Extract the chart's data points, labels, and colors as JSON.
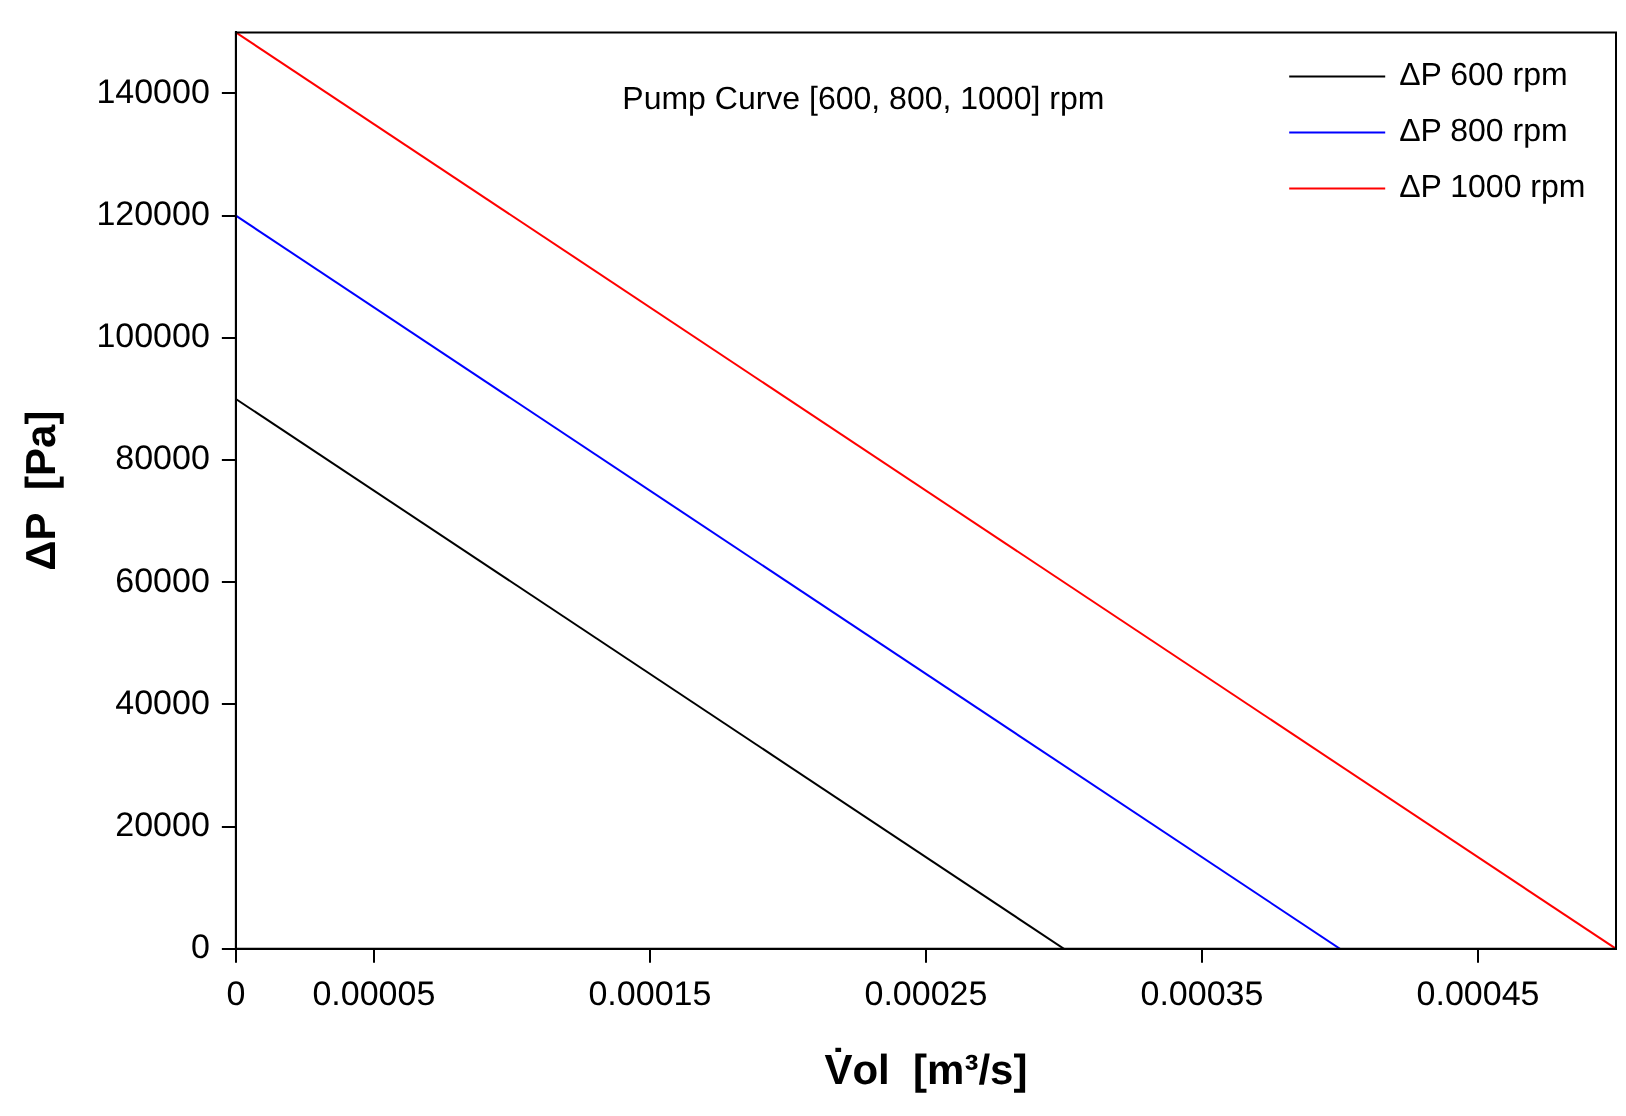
{
  "chart_data": {
    "type": "line",
    "xlabel": "V̇ol  [m³/s]",
    "ylabel": "ΔP  [Pa]",
    "annotations": [
      "Pump Curve [600, 800, 1000] rpm"
    ],
    "series": [
      {
        "name": "ΔP 600 rpm",
        "color": "#000000",
        "x": [
          0,
          0.0003
        ],
        "values": [
          90000,
          0
        ]
      },
      {
        "name": "ΔP 800 rpm",
        "color": "#0000ff",
        "x": [
          0,
          0.0004
        ],
        "values": [
          120000,
          0
        ]
      },
      {
        "name": "ΔP 1000 rpm",
        "color": "#ff0000",
        "x": [
          0,
          0.0005
        ],
        "values": [
          150000,
          0
        ]
      }
    ],
    "xlim": [
      0,
      0.0005
    ],
    "xticks": [
      0,
      {
        "value": 5e-05,
        "label": "0.00005"
      },
      {
        "value": 0.00015,
        "label": "0.00015"
      },
      {
        "value": 0.00025,
        "label": "0.00025"
      },
      {
        "value": 0.00035,
        "label": "0.00035"
      },
      {
        "value": 0.00045,
        "label": "0.00045"
      }
    ],
    "ylim": [
      0,
      150000
    ],
    "yticks": [
      0,
      20000,
      40000,
      60000,
      80000,
      100000,
      120000,
      140000
    ],
    "grid": false,
    "legend": "top right",
    "marker": "none",
    "line_style": "solid"
  }
}
